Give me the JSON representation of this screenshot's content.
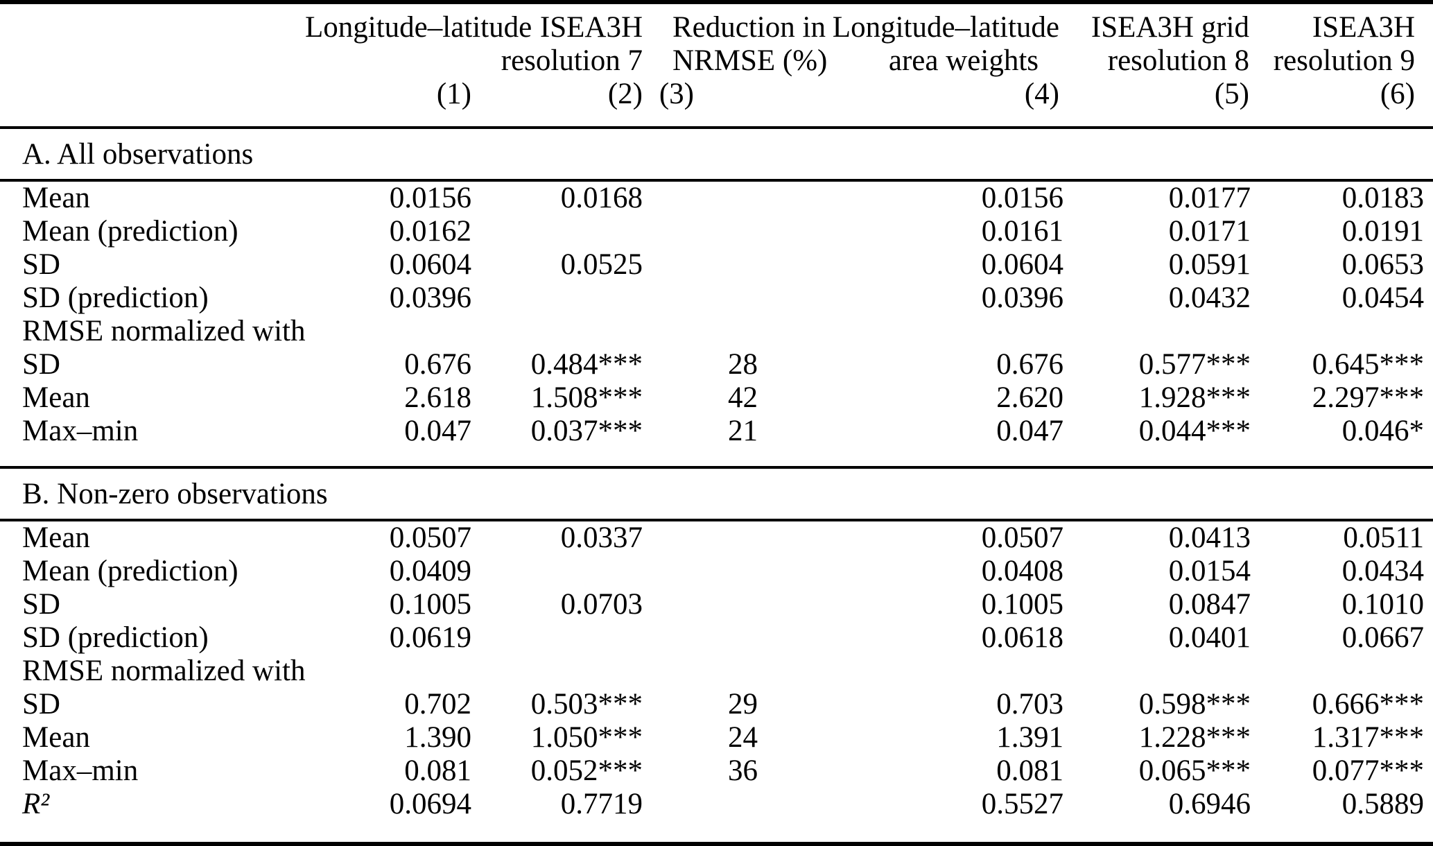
{
  "colors": {
    "text": "#000000",
    "background": "#ffffff",
    "rule": "#000000"
  },
  "table": {
    "columns": [
      {
        "header_line1": "Longitude–latitude",
        "header_line2": "",
        "number": "(1)"
      },
      {
        "header_line1": "ISEA3H",
        "header_line2": "resolution 7",
        "number": "(2)"
      },
      {
        "header_line1": "Reduction in",
        "header_line2": "NRMSE (%)",
        "number": "(3)"
      },
      {
        "header_line1": "Longitude–latitude",
        "header_line2": "area weights",
        "number": "(4)"
      },
      {
        "header_line1": "ISEA3H grid",
        "header_line2": "resolution 8",
        "number": "(5)"
      },
      {
        "header_line1": "ISEA3H",
        "header_line2": "resolution 9",
        "number": "(6)"
      }
    ],
    "panels": [
      {
        "title": "A. All observations",
        "rows": [
          {
            "label": "Mean",
            "cells": [
              "0.0156",
              "0.0168",
              "",
              "0.0156",
              "0.0177",
              "0.0183"
            ]
          },
          {
            "label": "Mean (prediction)",
            "cells": [
              "0.0162",
              "",
              "",
              "0.0161",
              "0.0171",
              "0.0191"
            ]
          },
          {
            "label": "SD",
            "cells": [
              "0.0604",
              "0.0525",
              "",
              "0.0604",
              "0.0591",
              "0.0653"
            ]
          },
          {
            "label": "SD (prediction)",
            "cells": [
              "0.0396",
              "",
              "",
              "0.0396",
              "0.0432",
              "0.0454"
            ]
          },
          {
            "label": "RMSE normalized with",
            "cells": [
              "",
              "",
              "",
              "",
              "",
              ""
            ]
          },
          {
            "label": "SD",
            "cells": [
              "0.676",
              "0.484***",
              "28",
              "0.676",
              "0.577***",
              "0.645***"
            ]
          },
          {
            "label": "Mean",
            "cells": [
              "2.618",
              "1.508***",
              "42",
              "2.620",
              "1.928***",
              "2.297***"
            ]
          },
          {
            "label": "Max–min",
            "cells": [
              "0.047",
              "0.037***",
              "21",
              "0.047",
              "0.044***",
              "0.046*"
            ]
          }
        ]
      },
      {
        "title": "B. Non-zero observations",
        "rows": [
          {
            "label": "Mean",
            "cells": [
              "0.0507",
              "0.0337",
              "",
              "0.0507",
              "0.0413",
              "0.0511"
            ]
          },
          {
            "label": "Mean (prediction)",
            "cells": [
              "0.0409",
              "",
              "",
              "0.0408",
              "0.0154",
              "0.0434"
            ]
          },
          {
            "label": "SD",
            "cells": [
              "0.1005",
              "0.0703",
              "",
              "0.1005",
              "0.0847",
              "0.1010"
            ]
          },
          {
            "label": "SD (prediction)",
            "cells": [
              "0.0619",
              "",
              "",
              "0.0618",
              "0.0401",
              "0.0667"
            ]
          },
          {
            "label": "RMSE normalized with",
            "cells": [
              "",
              "",
              "",
              "",
              "",
              ""
            ]
          },
          {
            "label": "SD",
            "cells": [
              "0.702",
              "0.503***",
              "29",
              "0.703",
              "0.598***",
              "0.666***"
            ]
          },
          {
            "label": "Mean",
            "cells": [
              "1.390",
              "1.050***",
              "24",
              "1.391",
              "1.228***",
              "1.317***"
            ]
          },
          {
            "label": "Max–min",
            "cells": [
              "0.081",
              "0.052***",
              "36",
              "0.081",
              "0.065***",
              "0.077***"
            ]
          },
          {
            "label": "R²",
            "label_italic": true,
            "cells": [
              "0.0694",
              "0.7719",
              "",
              "0.5527",
              "0.6946",
              "0.5889"
            ]
          }
        ]
      }
    ]
  }
}
